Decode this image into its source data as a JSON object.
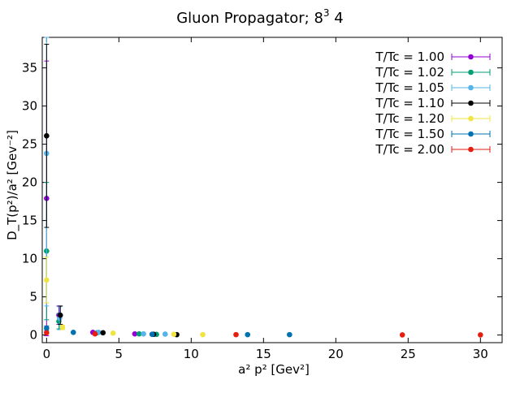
{
  "chart_data": {
    "type": "scatter",
    "title": "Gluon Propagator; 8",
    "title_sup": "3",
    "title_tail": " 4",
    "xlabel": "a² p² [Gev²]",
    "ylabel": "D_T(p²)/a² [Gev⁻²]",
    "xlim": [
      -0.3,
      31.5
    ],
    "ylim": [
      -1.0,
      39.0
    ],
    "xticks": [
      0,
      5,
      10,
      15,
      20,
      25,
      30
    ],
    "yticks": [
      0,
      5,
      10,
      15,
      20,
      25,
      30,
      35
    ],
    "grid": false,
    "legend_position": "top-right",
    "error_bars": true,
    "series": [
      {
        "name": "T/Tc = 1.00",
        "color": "#9400d3",
        "points": [
          {
            "x": 0.0,
            "y": 17.9,
            "err": 18.0
          },
          {
            "x": 0.85,
            "y": 2.6,
            "err": 1.2
          },
          {
            "x": 3.2,
            "y": 0.35,
            "err": 0.05
          },
          {
            "x": 6.1,
            "y": 0.15,
            "err": 0.03
          },
          {
            "x": 7.3,
            "y": 0.1,
            "err": 0.02
          }
        ]
      },
      {
        "name": "T/Tc = 1.02",
        "color": "#009e73",
        "points": [
          {
            "x": 0.0,
            "y": 11.0,
            "err": 9.0
          },
          {
            "x": 0.85,
            "y": 1.8,
            "err": 1.0
          },
          {
            "x": 3.5,
            "y": 0.3,
            "err": 0.05
          },
          {
            "x": 6.4,
            "y": 0.15,
            "err": 0.03
          },
          {
            "x": 7.6,
            "y": 0.08,
            "err": 0.02
          }
        ]
      },
      {
        "name": "T/Tc = 1.05",
        "color": "#56b4e9",
        "points": [
          {
            "x": 0.0,
            "y": 23.8,
            "err": 20.0
          },
          {
            "x": 0.9,
            "y": 2.2,
            "err": 1.5
          },
          {
            "x": 3.6,
            "y": 0.35,
            "err": 0.05
          },
          {
            "x": 6.7,
            "y": 0.15,
            "err": 0.03
          },
          {
            "x": 8.2,
            "y": 0.12,
            "err": 0.02
          }
        ]
      },
      {
        "name": "T/Tc = 1.10",
        "color": "#000000",
        "points": [
          {
            "x": 0.0,
            "y": 26.1,
            "err": 12.0
          },
          {
            "x": 0.95,
            "y": 2.6,
            "err": 1.2
          },
          {
            "x": 3.9,
            "y": 0.3,
            "err": 0.05
          },
          {
            "x": 7.4,
            "y": 0.1,
            "err": 0.02
          },
          {
            "x": 9.0,
            "y": 0.05,
            "err": 0.02
          }
        ]
      },
      {
        "name": "T/Tc = 1.20",
        "color": "#f0e442",
        "points": [
          {
            "x": 0.0,
            "y": 7.2,
            "err": 3.0
          },
          {
            "x": 1.1,
            "y": 1.0,
            "err": 0.3
          },
          {
            "x": 4.6,
            "y": 0.25,
            "err": 0.05
          },
          {
            "x": 8.8,
            "y": 0.1,
            "err": 0.02
          },
          {
            "x": 10.8,
            "y": 0.05,
            "err": 0.02
          }
        ]
      },
      {
        "name": "T/Tc = 1.50",
        "color": "#0072b2",
        "points": [
          {
            "x": 0.0,
            "y": 0.9,
            "err": 0.3
          },
          {
            "x": 1.85,
            "y": 0.35,
            "err": 0.05
          },
          {
            "x": 7.3,
            "y": 0.1,
            "err": 0.02
          },
          {
            "x": 13.9,
            "y": 0.05,
            "err": 0.02
          },
          {
            "x": 16.8,
            "y": 0.05,
            "err": 0.02
          }
        ]
      },
      {
        "name": "T/Tc = 2.00",
        "color": "#e51e10",
        "points": [
          {
            "x": 0.0,
            "y": 0.3,
            "err": 0.1
          },
          {
            "x": 3.35,
            "y": 0.15,
            "err": 0.03
          },
          {
            "x": 13.1,
            "y": 0.05,
            "err": 0.02
          },
          {
            "x": 24.6,
            "y": 0.02,
            "err": 0.01
          },
          {
            "x": 30.0,
            "y": 0.02,
            "err": 0.01
          }
        ]
      }
    ]
  }
}
